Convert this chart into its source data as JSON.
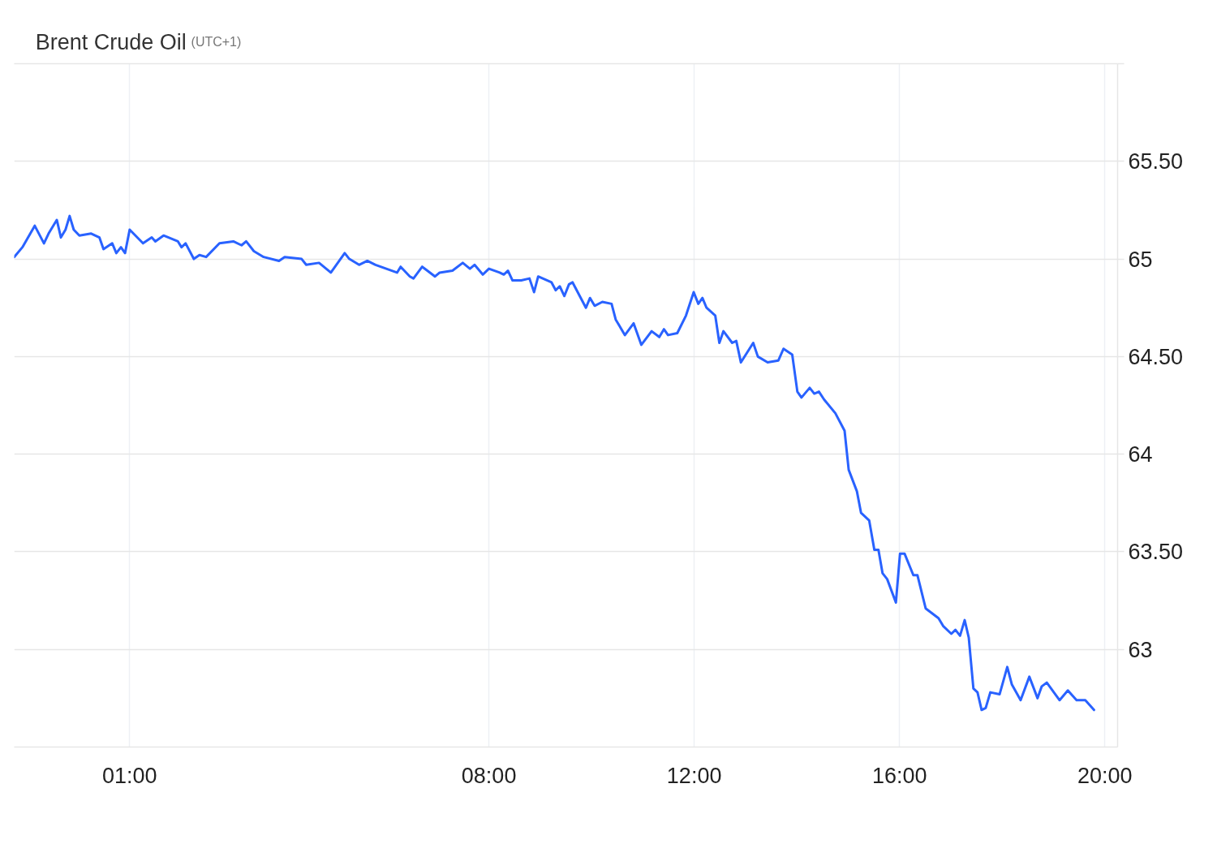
{
  "chart_data": {
    "type": "line",
    "title": "Brent Crude Oil",
    "subtitle": "(UTC+1)",
    "x": [
      -1.25,
      -1.09,
      -0.85,
      -0.67,
      -0.58,
      -0.42,
      -0.34,
      -0.25,
      -0.17,
      -0.09,
      0.02,
      0.25,
      0.41,
      0.49,
      0.66,
      0.74,
      0.83,
      0.91,
      1.0,
      1.26,
      1.43,
      1.5,
      1.66,
      1.94,
      2.01,
      2.09,
      2.25,
      2.36,
      2.49,
      2.75,
      3.02,
      3.18,
      3.27,
      3.42,
      3.61,
      3.91,
      4.02,
      4.35,
      4.44,
      4.69,
      4.92,
      5.19,
      5.28,
      5.47,
      5.63,
      5.79,
      6.21,
      6.28,
      6.46,
      6.53,
      6.7,
      6.8,
      6.95,
      7.04,
      7.29,
      7.49,
      7.63,
      7.72,
      7.88,
      8.0,
      8.21,
      8.29,
      8.37,
      8.46,
      8.63,
      8.79,
      8.88,
      8.96,
      9.22,
      9.3,
      9.38,
      9.47,
      9.56,
      9.63,
      9.89,
      9.97,
      10.06,
      10.21,
      10.39,
      10.47,
      10.65,
      10.82,
      10.97,
      11.17,
      11.32,
      11.41,
      11.49,
      11.67,
      11.84,
      11.99,
      12.08,
      12.16,
      12.24,
      12.41,
      12.49,
      12.57,
      12.74,
      12.82,
      12.91,
      13.15,
      13.24,
      13.43,
      13.64,
      13.74,
      13.91,
      14.01,
      14.09,
      14.25,
      14.34,
      14.43,
      14.53,
      14.75,
      14.93,
      15.01,
      15.17,
      15.25,
      15.41,
      15.51,
      15.59,
      15.67,
      15.76,
      15.93,
      16.01,
      16.1,
      16.27,
      16.35,
      16.51,
      16.76,
      16.85,
      17.01,
      17.09,
      17.18,
      17.27,
      17.35,
      17.44,
      17.52,
      17.6,
      17.68,
      17.77,
      17.95,
      18.1,
      18.19,
      18.36,
      18.53,
      18.69,
      18.77,
      18.87,
      19.12,
      19.28,
      19.45,
      19.62,
      19.79
    ],
    "series": [
      {
        "color": "#2962ff",
        "values": [
          65.01,
          65.06,
          65.17,
          65.08,
          65.13,
          65.2,
          65.11,
          65.15,
          65.22,
          65.15,
          65.12,
          65.13,
          65.11,
          65.05,
          65.08,
          65.03,
          65.06,
          65.03,
          65.15,
          65.08,
          65.11,
          65.09,
          65.12,
          65.09,
          65.06,
          65.08,
          65.0,
          65.02,
          65.01,
          65.08,
          65.09,
          65.07,
          65.09,
          65.04,
          65.01,
          64.99,
          65.01,
          65.0,
          64.97,
          64.98,
          64.93,
          65.03,
          65.0,
          64.97,
          64.99,
          64.97,
          64.93,
          64.96,
          64.91,
          64.9,
          64.96,
          64.94,
          64.91,
          64.93,
          64.94,
          64.98,
          64.95,
          64.97,
          64.92,
          64.95,
          64.93,
          64.92,
          64.94,
          64.89,
          64.89,
          64.9,
          64.83,
          64.91,
          64.88,
          64.84,
          64.86,
          64.81,
          64.87,
          64.88,
          64.75,
          64.8,
          64.76,
          64.78,
          64.77,
          64.69,
          64.61,
          64.67,
          64.56,
          64.63,
          64.6,
          64.64,
          64.61,
          64.62,
          64.71,
          64.83,
          64.77,
          64.8,
          64.75,
          64.71,
          64.57,
          64.63,
          64.57,
          64.58,
          64.47,
          64.57,
          64.5,
          64.47,
          64.48,
          64.54,
          64.51,
          64.32,
          64.29,
          64.34,
          64.31,
          64.32,
          64.28,
          64.21,
          64.12,
          63.92,
          63.81,
          63.7,
          63.66,
          63.51,
          63.51,
          63.39,
          63.36,
          63.24,
          63.49,
          63.49,
          63.38,
          63.38,
          63.21,
          63.16,
          63.12,
          63.08,
          63.1,
          63.07,
          63.15,
          63.06,
          62.8,
          62.78,
          62.69,
          62.7,
          62.78,
          62.77,
          62.91,
          62.82,
          62.74,
          62.86,
          62.75,
          62.81,
          62.83,
          62.74,
          62.79,
          62.74,
          62.74,
          62.69
        ]
      }
    ],
    "xlim": [
      -1.25,
      20.25
    ],
    "xticks": [
      {
        "value": 1,
        "label": "01:00"
      },
      {
        "value": 8,
        "label": "08:00"
      },
      {
        "value": 12,
        "label": "12:00"
      },
      {
        "value": 16,
        "label": "16:00"
      },
      {
        "value": 20,
        "label": "20:00"
      }
    ],
    "ylim": [
      62.5,
      66
    ],
    "yticks": [
      63,
      {
        "value": 63.5,
        "label": "63.50"
      },
      64,
      {
        "value": 64.5,
        "label": "64.50"
      },
      65,
      {
        "value": 65.5,
        "label": "65.50"
      },
      {
        "value": 66,
        "label": null
      }
    ],
    "grid": true,
    "line_style": "solid"
  }
}
